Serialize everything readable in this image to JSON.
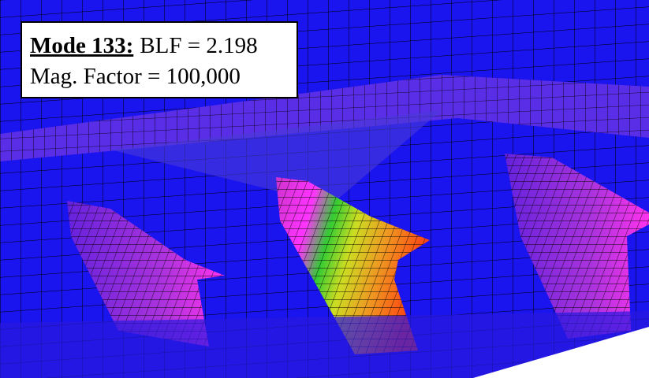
{
  "label": {
    "mode": "Mode 133:",
    "blf": "BLF = 2.198",
    "mag": "Mag. Factor = 100,000"
  }
}
